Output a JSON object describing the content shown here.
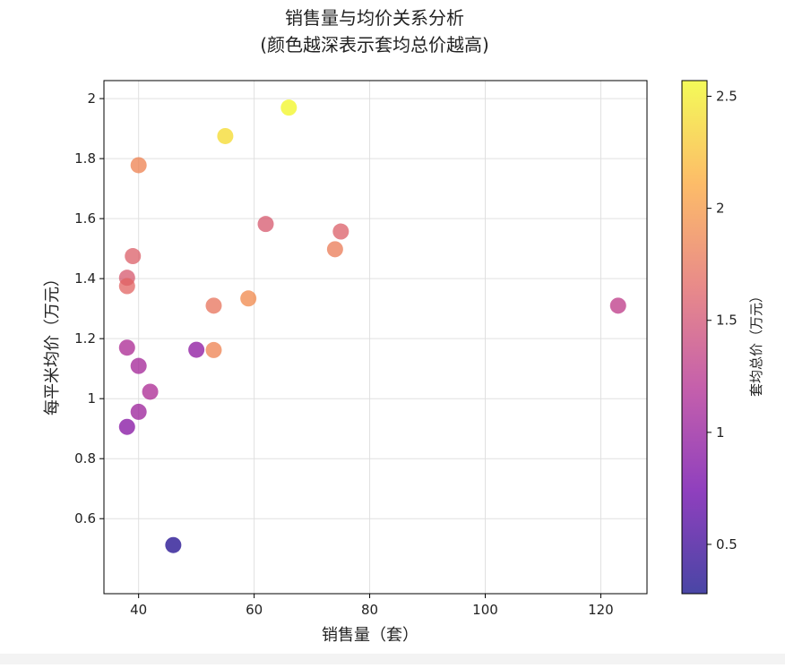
{
  "chart_data": {
    "type": "scatter",
    "title": "销售量与均价关系分析",
    "subtitle": "(颜色越深表示套均总价越高)",
    "xlabel": "销售量（套）",
    "ylabel": "每平米均价（万元）",
    "xlim": [
      34,
      128
    ],
    "ylim": [
      0.35,
      2.06
    ],
    "xticks": [
      40,
      60,
      80,
      100,
      120
    ],
    "yticks": [
      0.6,
      0.8,
      1.0,
      1.2,
      1.4,
      1.6,
      1.8,
      2.0
    ],
    "grid": true,
    "points": [
      {
        "x": 66,
        "y": 1.97,
        "c": 2.55
      },
      {
        "x": 55,
        "y": 1.875,
        "c": 2.4
      },
      {
        "x": 40,
        "y": 1.778,
        "c": 1.85
      },
      {
        "x": 62,
        "y": 1.582,
        "c": 1.55
      },
      {
        "x": 75,
        "y": 1.557,
        "c": 1.6
      },
      {
        "x": 74,
        "y": 1.498,
        "c": 1.8
      },
      {
        "x": 39,
        "y": 1.475,
        "c": 1.6
      },
      {
        "x": 38,
        "y": 1.403,
        "c": 1.55
      },
      {
        "x": 38,
        "y": 1.375,
        "c": 1.65
      },
      {
        "x": 59,
        "y": 1.334,
        "c": 1.9
      },
      {
        "x": 53,
        "y": 1.31,
        "c": 1.75
      },
      {
        "x": 123,
        "y": 1.31,
        "c": 1.3
      },
      {
        "x": 38,
        "y": 1.17,
        "c": 1.15
      },
      {
        "x": 50,
        "y": 1.163,
        "c": 0.95
      },
      {
        "x": 53,
        "y": 1.162,
        "c": 1.85
      },
      {
        "x": 40,
        "y": 1.109,
        "c": 1.1
      },
      {
        "x": 42,
        "y": 1.023,
        "c": 1.15
      },
      {
        "x": 40,
        "y": 0.956,
        "c": 1.05
      },
      {
        "x": 38,
        "y": 0.906,
        "c": 0.9
      },
      {
        "x": 46,
        "y": 0.512,
        "c": 0.35
      }
    ],
    "colorbar": {
      "label": "套均总价（万元）",
      "range": [
        0.28,
        2.57
      ],
      "ticks": [
        0.5,
        1.0,
        1.5,
        2.0,
        2.5
      ],
      "colormap": "plasma",
      "colormap_stops": [
        "#0d0887",
        "#6a00a8",
        "#b12a90",
        "#e16462",
        "#fca636",
        "#f0f921"
      ]
    },
    "marker_alpha": 0.75,
    "colors": {
      "grid": "#e0e0e0",
      "axis": "#000000"
    }
  }
}
